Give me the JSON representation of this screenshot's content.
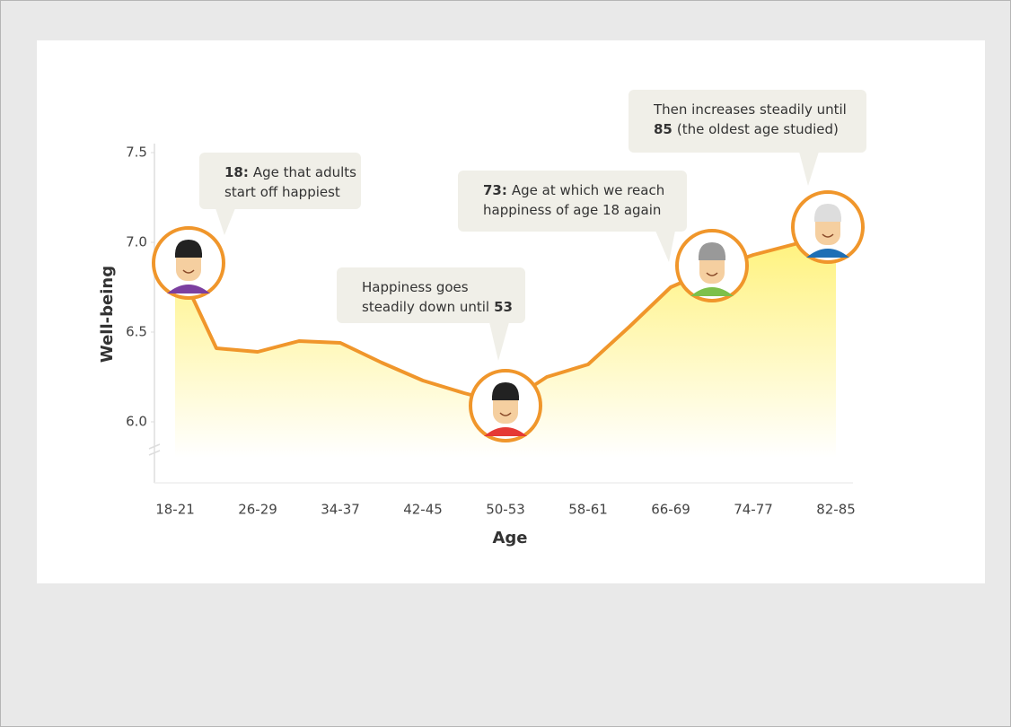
{
  "chart_data": {
    "type": "area",
    "y_label": "Well-being",
    "x_label": "Age",
    "categories": [
      "18-21",
      null,
      "26-29",
      null,
      "34-37",
      null,
      "42-45",
      null,
      "50-53",
      null,
      "58-61",
      null,
      "66-69",
      null,
      "74-77",
      null,
      "82-85"
    ],
    "values": [
      6.9,
      6.41,
      6.39,
      6.45,
      6.44,
      6.33,
      6.23,
      6.16,
      6.1,
      6.25,
      6.32,
      6.53,
      6.75,
      6.85,
      6.93,
      6.99,
      7.05
    ],
    "color": "#f0962b",
    "fill_color": "#fff27a",
    "ylim": [
      5.7,
      7.5
    ],
    "yticks": [
      {
        "value": 6,
        "label": "6.0"
      },
      {
        "value": 6.5,
        "label": "6.5"
      },
      {
        "value": 7,
        "label": "7.0"
      },
      {
        "value": 7.5,
        "label": "7.5"
      }
    ],
    "grid": false,
    "annotations": [
      {
        "lines": [
          [
            {
              "text": "18:",
              "bold": true
            },
            {
              "text": "Age that adults"
            }
          ],
          [
            {
              "text": "start off happiest"
            }
          ]
        ]
      },
      {
        "lines": [
          [
            {
              "text": "73:",
              "bold": true
            },
            {
              "text": "Age at which we reach"
            }
          ],
          [
            {
              "text": "happiness of age 18 again"
            }
          ]
        ]
      },
      {
        "lines": [
          [
            {
              "text": "Happiness goes"
            }
          ],
          [
            {
              "text": "steadily down until"
            },
            {
              "text": "53",
              "bold": true
            }
          ]
        ]
      },
      {
        "lines": [
          [
            {
              "text": "Then increases steadily until"
            }
          ],
          [
            {
              "text": "85",
              "bold": true
            },
            {
              "text": "(the oldest age studied)"
            }
          ]
        ]
      }
    ]
  }
}
